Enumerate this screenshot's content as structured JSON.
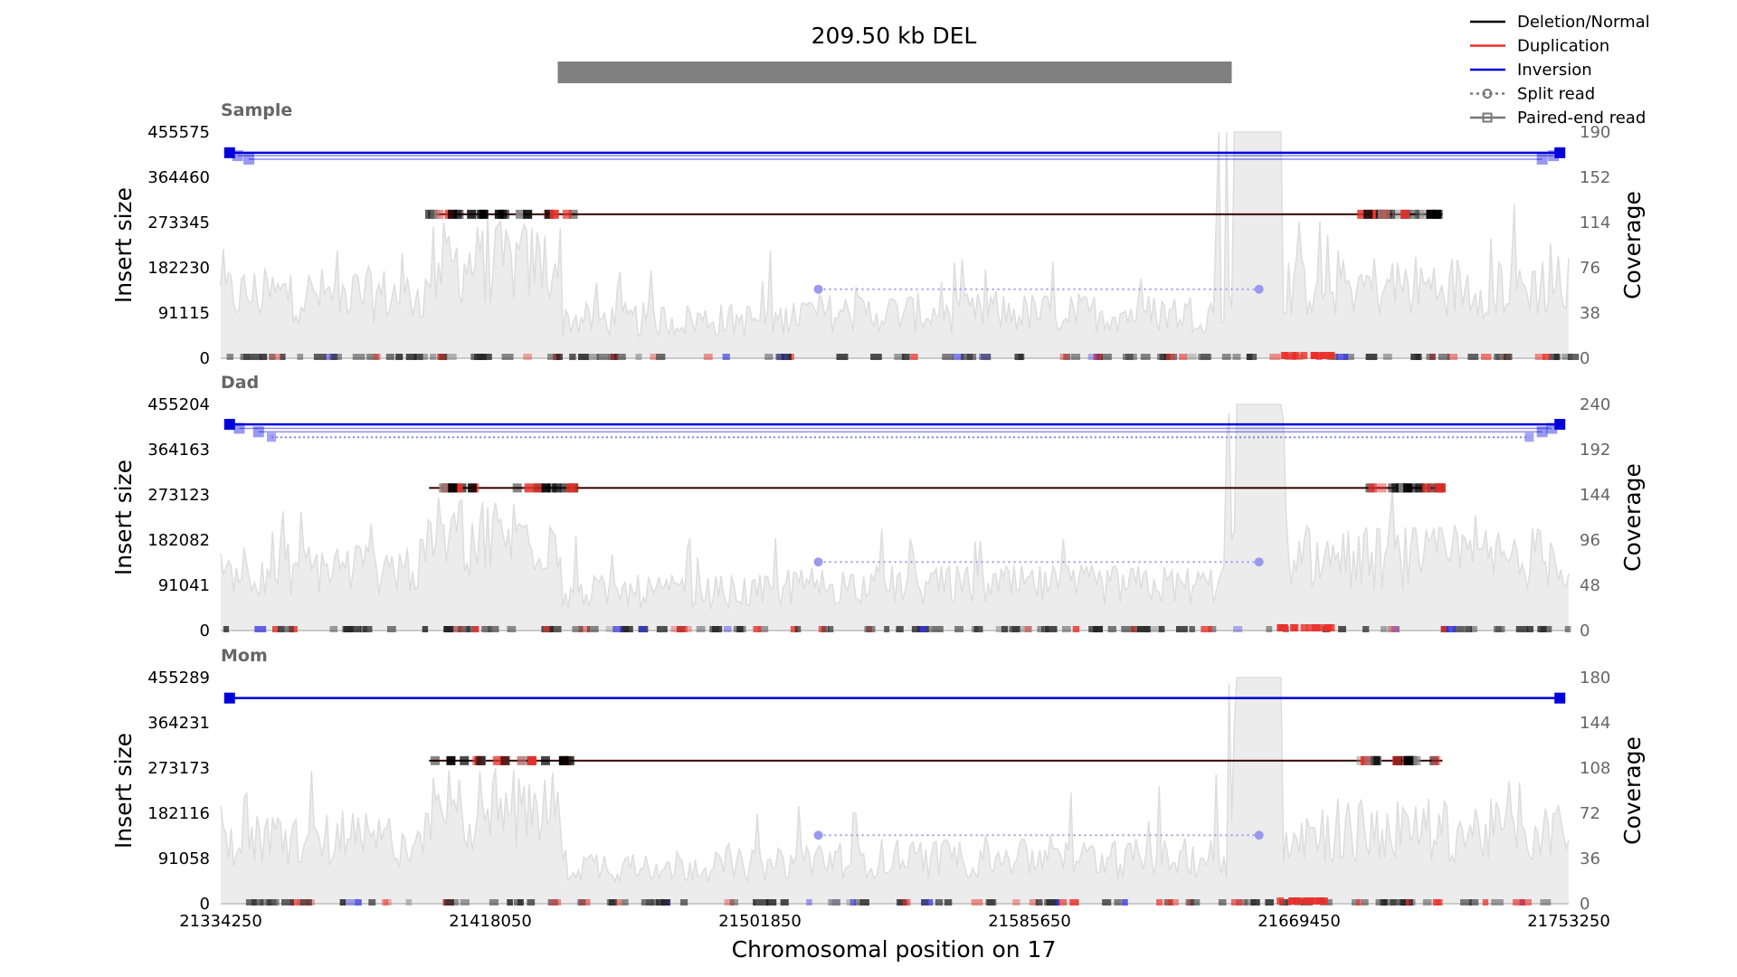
{
  "chart_data": {
    "type": "line",
    "title": "209.50 kb DEL",
    "xlabel": "Chromosomal position on 17",
    "x_ticks": [
      "21334250",
      "21418050",
      "21501850",
      "21585650",
      "21669450",
      "21753250"
    ],
    "xlim": [
      21334250,
      21753250
    ],
    "sv_region": [
      21439000,
      21648500
    ],
    "legend": {
      "placement": "top-right",
      "entries": [
        {
          "label": "Deletion/Normal",
          "color": "#000000",
          "style": "solid"
        },
        {
          "label": "Duplication",
          "color": "#e8302a",
          "style": "solid"
        },
        {
          "label": "Inversion",
          "color": "#0000dd",
          "style": "solid"
        },
        {
          "label": "Split read",
          "color": "#777777",
          "style": "dotted-circle"
        },
        {
          "label": "Paired-end read",
          "color": "#777777",
          "style": "solid-square"
        }
      ]
    },
    "panels": [
      {
        "name": "Sample",
        "ylabel_left": "Insert size",
        "ylabel_right": "Coverage",
        "y_ticks": [
          "0",
          "91115",
          "182230",
          "273345",
          "364460",
          "455575"
        ],
        "cov_ticks": [
          "0",
          "38",
          "76",
          "114",
          "152",
          "190"
        ],
        "cov_max": 190,
        "inversion_reads": [
          {
            "x1": 21337000,
            "x2": 21750500,
            "y": 414000,
            "type": "paired"
          },
          {
            "x1": 21339500,
            "x2": 21748500,
            "y": 408000,
            "type": "paired"
          },
          {
            "x1": 21343000,
            "x2": 21745000,
            "y": 401000,
            "type": "paired"
          }
        ],
        "deletion_reads": {
          "x1": 21399000,
          "x2": 21714000,
          "y": 290000
        },
        "split_reads": [
          {
            "x1": 21520000,
            "x2": 21657000,
            "y": 139000,
            "color": "#9999ee"
          }
        ]
      },
      {
        "name": "Dad",
        "ylabel_left": "Insert size",
        "ylabel_right": "Coverage",
        "y_ticks": [
          "0",
          "91041",
          "182082",
          "273123",
          "364163",
          "455204"
        ],
        "cov_ticks": [
          "0",
          "48",
          "96",
          "144",
          "192",
          "240"
        ],
        "cov_max": 240,
        "inversion_reads": [
          {
            "x1": 21337000,
            "x2": 21750500,
            "y": 415000,
            "type": "paired"
          },
          {
            "x1": 21340000,
            "x2": 21748000,
            "y": 407000,
            "type": "paired"
          },
          {
            "x1": 21346000,
            "x2": 21745000,
            "y": 400000,
            "type": "paired"
          }
        ],
        "extra_split": {
          "x1": 21350000,
          "x2": 21741000,
          "y": 389000,
          "color": "#9999ee"
        },
        "deletion_reads": {
          "x1": 21399000,
          "x2": 21714000,
          "y": 287000
        },
        "split_reads": [
          {
            "x1": 21520000,
            "x2": 21657000,
            "y": 138000,
            "color": "#9999ee"
          }
        ]
      },
      {
        "name": "Mom",
        "ylabel_left": "Insert size",
        "ylabel_right": "Coverage",
        "y_ticks": [
          "0",
          "91058",
          "182116",
          "273173",
          "364231",
          "455289"
        ],
        "cov_ticks": [
          "0",
          "36",
          "72",
          "108",
          "144",
          "180"
        ],
        "cov_max": 180,
        "inversion_reads": [
          {
            "x1": 21337000,
            "x2": 21750500,
            "y": 414000,
            "type": "paired"
          }
        ],
        "deletion_reads": {
          "x1": 21399000,
          "x2": 21714000,
          "y": 288000
        },
        "split_reads": [
          {
            "x1": 21520000,
            "x2": 21657000,
            "y": 138000,
            "color": "#9999ee"
          }
        ]
      }
    ]
  }
}
